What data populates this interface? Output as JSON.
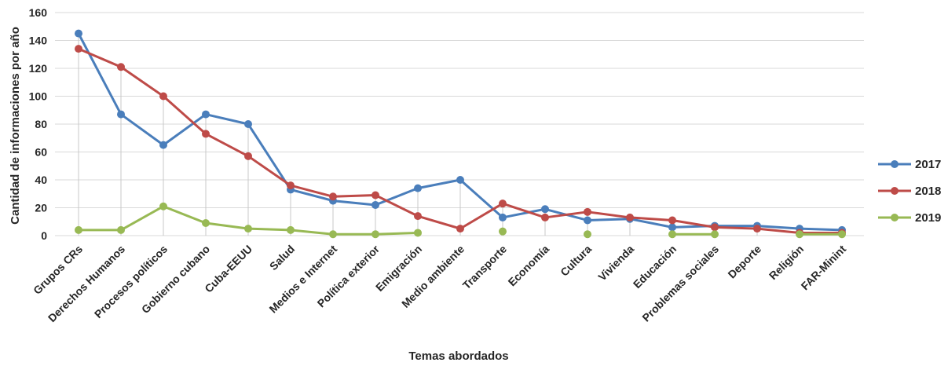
{
  "chart_data": {
    "type": "line",
    "xlabel": "Temas abordados",
    "ylabel": "Cantidad de informaciones por año",
    "ylim": [
      0,
      160
    ],
    "yticks": [
      0,
      20,
      40,
      60,
      80,
      100,
      120,
      140,
      160
    ],
    "grid": true,
    "legend_position": "right",
    "categories": [
      "Grupos CRs",
      "Derechos Humanos",
      "Procesos políticos",
      "Gobierno cubano",
      "Cuba-EEUU",
      "Salud",
      "Medios e Internet",
      "Política exterior",
      "Emigración",
      "Medio ambiente",
      "Transporte",
      "Economía",
      "Cultura",
      "Vivienda",
      "Educación",
      "Problemas sociales",
      "Deporte",
      "Religión",
      "FAR-Minint"
    ],
    "series": [
      {
        "name": "2017",
        "color": "#4a7ebb",
        "values": [
          145,
          87,
          65,
          87,
          80,
          33,
          25,
          22,
          34,
          40,
          13,
          19,
          11,
          12,
          6,
          7,
          7,
          5,
          4
        ]
      },
      {
        "name": "2018",
        "color": "#be4b48",
        "values": [
          134,
          121,
          100,
          73,
          57,
          36,
          28,
          29,
          14,
          5,
          23,
          13,
          17,
          13,
          11,
          6,
          5,
          2,
          2
        ]
      },
      {
        "name": "2019",
        "color": "#98b954",
        "values": [
          4,
          4,
          21,
          9,
          5,
          4,
          1,
          1,
          2,
          null,
          3,
          null,
          1,
          null,
          1,
          1,
          null,
          1,
          1
        ]
      }
    ]
  }
}
